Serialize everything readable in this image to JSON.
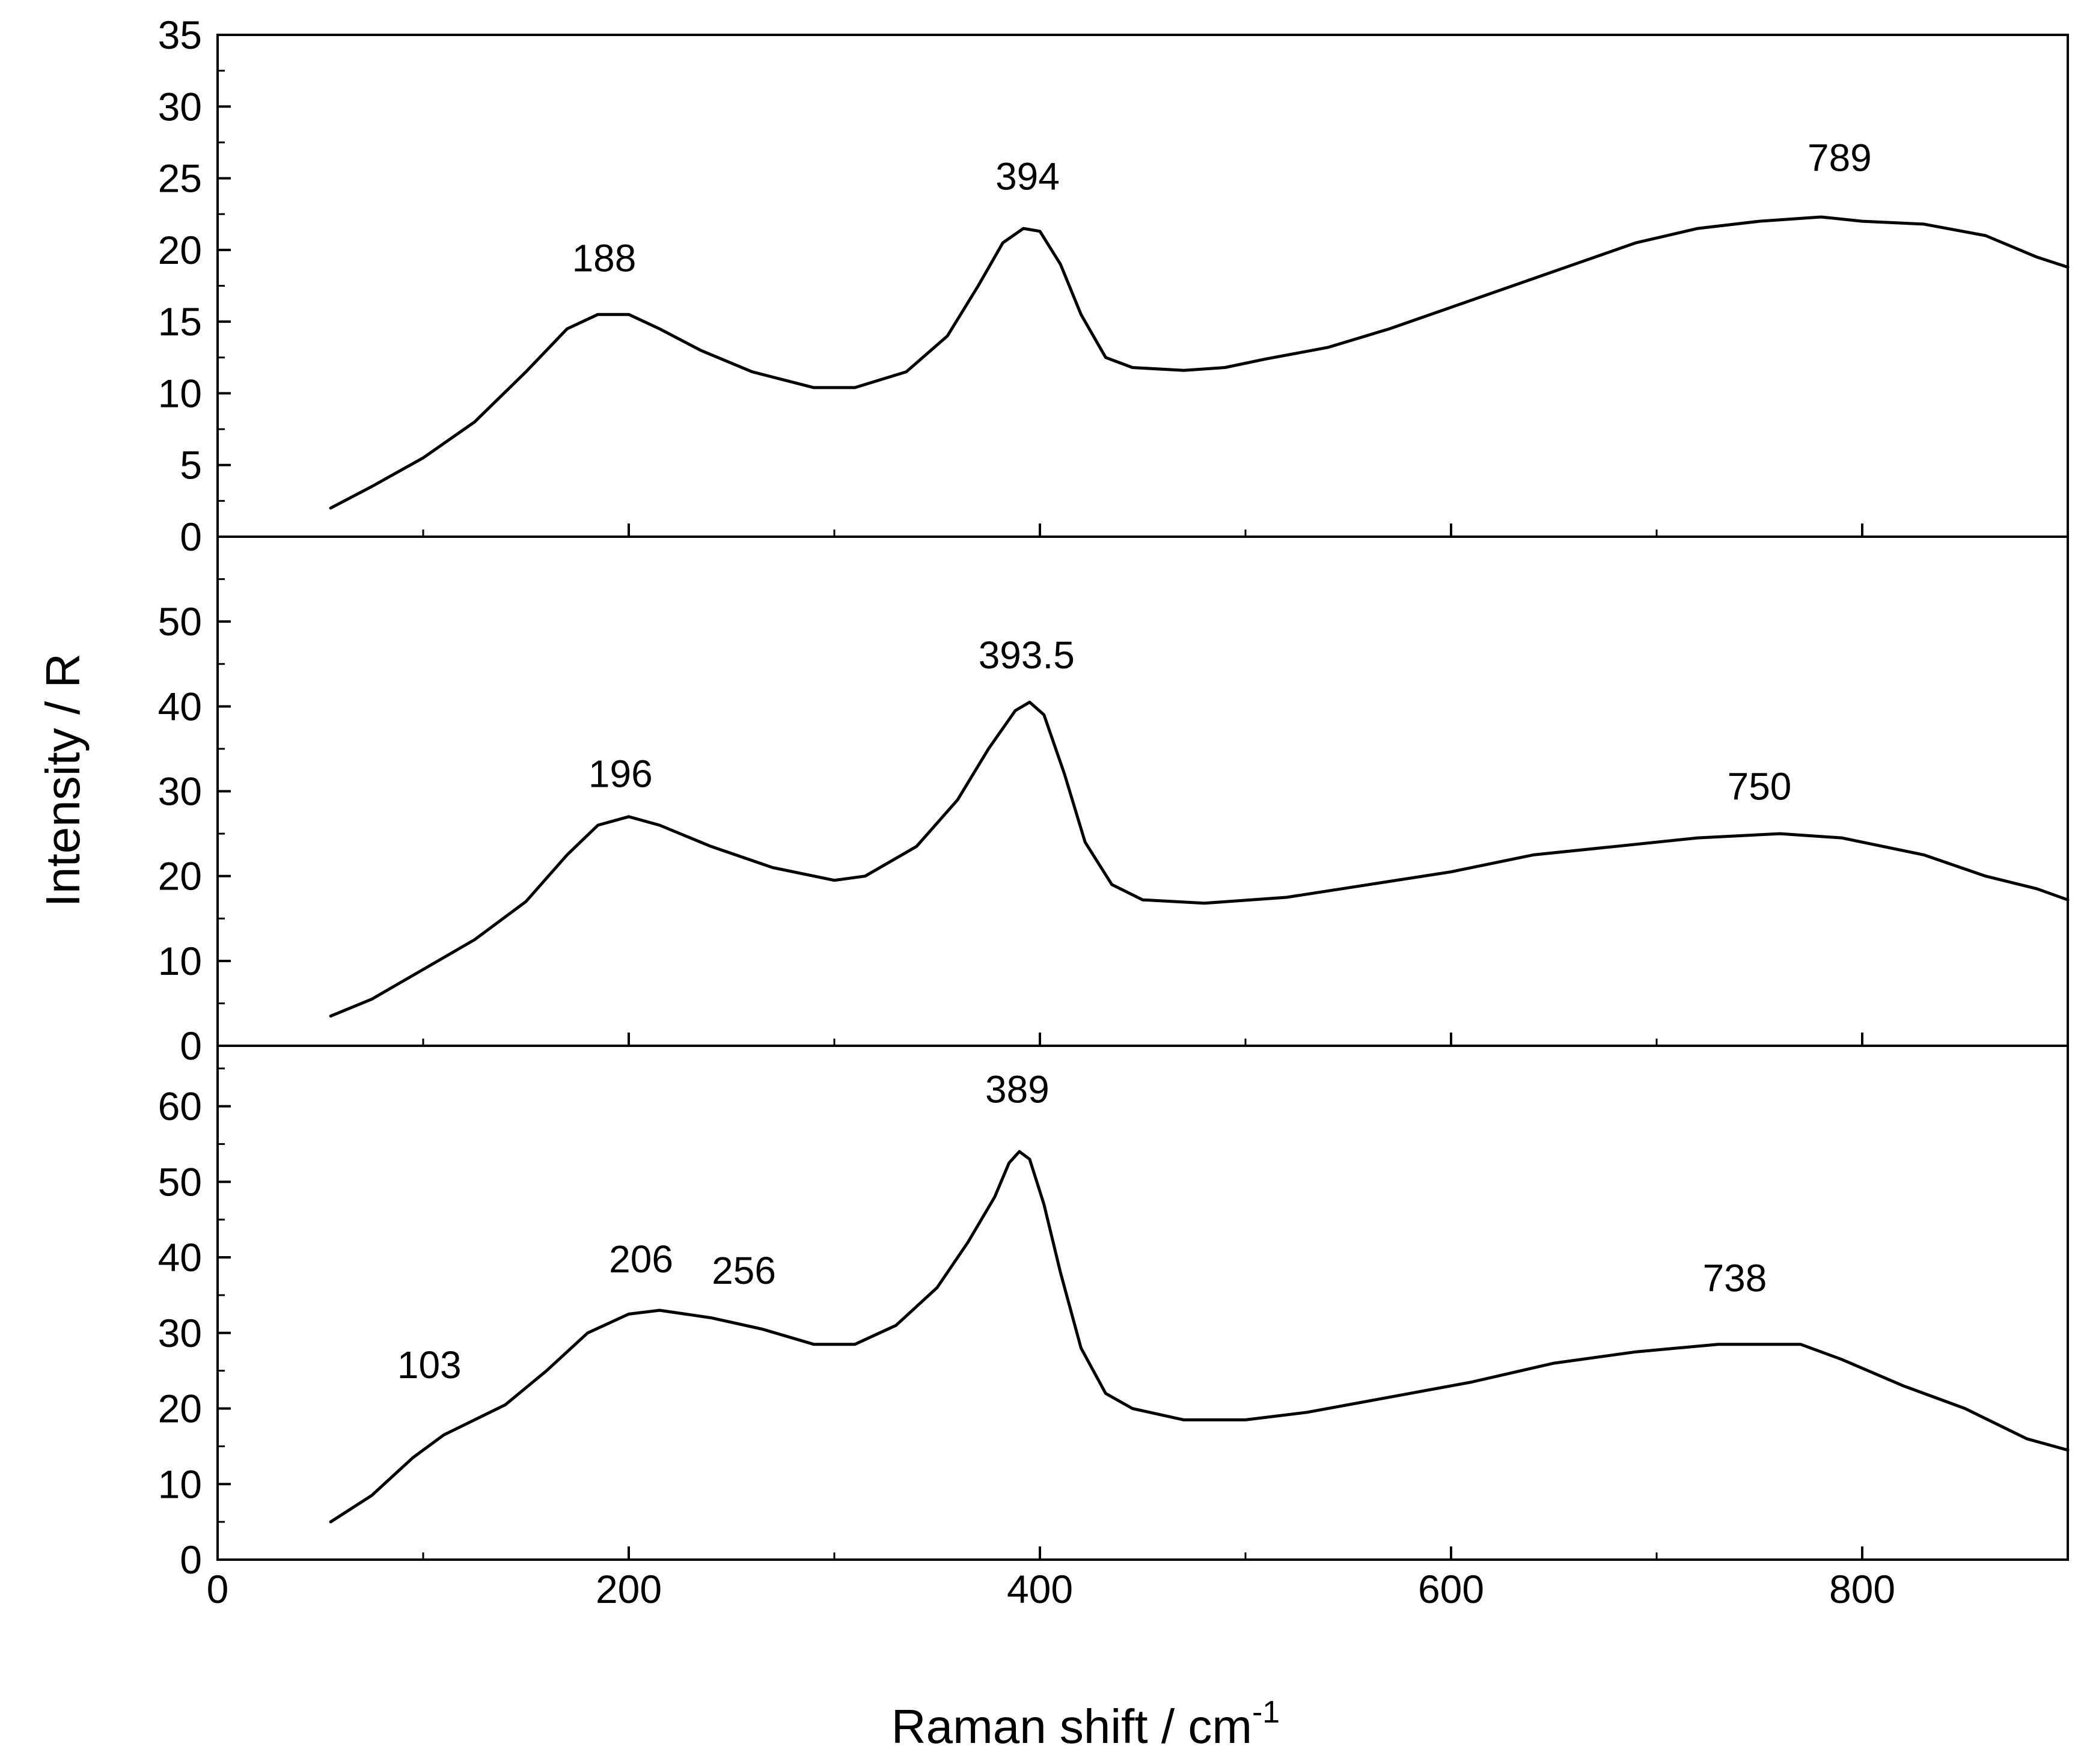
{
  "chart_data": {
    "type": "line",
    "xlabel": "Raman shift / cm",
    "xlabel_superscript": "-1",
    "ylabel": "Intensity / R",
    "xlim": [
      0,
      900
    ],
    "x_ticks": [
      0,
      200,
      400,
      600,
      800
    ],
    "x_tick_labels": [
      "0",
      "200",
      "400",
      "600",
      "800"
    ],
    "line_color": "#000000",
    "panels": [
      {
        "name": "top",
        "ylim": [
          0,
          35
        ],
        "y_ticks": [
          0,
          5,
          10,
          15,
          20,
          25,
          30,
          35
        ],
        "y_tick_labels": [
          "0",
          "5",
          "10",
          "15",
          "20",
          "25",
          "30",
          "35"
        ],
        "peak_labels": [
          {
            "text": "188",
            "x": 188,
            "y": 18.5
          },
          {
            "text": "394",
            "x": 394,
            "y": 24.2
          },
          {
            "text": "789",
            "x": 789,
            "y": 25.5
          }
        ],
        "series": {
          "x": [
            55,
            75,
            100,
            125,
            150,
            170,
            185,
            200,
            215,
            235,
            260,
            290,
            310,
            335,
            355,
            370,
            382,
            392,
            400,
            410,
            420,
            432,
            445,
            470,
            490,
            510,
            540,
            570,
            600,
            630,
            660,
            690,
            720,
            750,
            780,
            800,
            830,
            860,
            885,
            900
          ],
          "y": [
            2.0,
            3.5,
            5.5,
            8.0,
            11.5,
            14.5,
            15.5,
            15.5,
            14.5,
            13.0,
            11.5,
            10.4,
            10.4,
            11.5,
            14.0,
            17.5,
            20.5,
            21.5,
            21.3,
            19.0,
            15.5,
            12.5,
            11.8,
            11.6,
            11.8,
            12.4,
            13.2,
            14.5,
            16.0,
            17.5,
            19.0,
            20.5,
            21.5,
            22.0,
            22.3,
            22.0,
            21.8,
            21.0,
            19.5,
            18.8
          ]
        }
      },
      {
        "name": "middle",
        "ylim": [
          0,
          60
        ],
        "y_ticks": [
          0,
          10,
          20,
          30,
          40,
          50
        ],
        "y_tick_labels": [
          "0",
          "10",
          "20",
          "30",
          "40",
          "50"
        ],
        "peak_labels": [
          {
            "text": "196",
            "x": 196,
            "y": 30.5
          },
          {
            "text": "393.5",
            "x": 393.5,
            "y": 44.5
          },
          {
            "text": "750",
            "x": 750,
            "y": 29.0
          }
        ],
        "series": {
          "x": [
            55,
            75,
            100,
            125,
            150,
            170,
            185,
            200,
            215,
            240,
            270,
            300,
            315,
            340,
            360,
            375,
            388,
            395,
            402,
            412,
            422,
            435,
            450,
            480,
            520,
            560,
            600,
            640,
            680,
            720,
            760,
            790,
            830,
            860,
            885,
            900
          ],
          "y": [
            3.5,
            5.5,
            9.0,
            12.5,
            17.0,
            22.5,
            26.0,
            27.0,
            26.0,
            23.5,
            21.0,
            19.5,
            20.0,
            23.5,
            29.0,
            35.0,
            39.5,
            40.5,
            39.0,
            32.0,
            24.0,
            19.0,
            17.2,
            16.8,
            17.5,
            19.0,
            20.5,
            22.5,
            23.5,
            24.5,
            25.0,
            24.5,
            22.5,
            20.0,
            18.5,
            17.2
          ]
        }
      },
      {
        "name": "bottom",
        "ylim": [
          0,
          68
        ],
        "y_ticks": [
          0,
          10,
          20,
          30,
          40,
          50,
          60
        ],
        "y_tick_labels": [
          "0",
          "10",
          "20",
          "30",
          "40",
          "50",
          "60"
        ],
        "peak_labels": [
          {
            "text": "103",
            "x": 103,
            "y": 24.0
          },
          {
            "text": "206",
            "x": 206,
            "y": 38.0
          },
          {
            "text": "256",
            "x": 256,
            "y": 36.5
          },
          {
            "text": "389",
            "x": 389,
            "y": 60.5
          },
          {
            "text": "738",
            "x": 738,
            "y": 35.5
          }
        ],
        "series": {
          "x": [
            55,
            75,
            95,
            110,
            125,
            140,
            160,
            180,
            200,
            215,
            240,
            265,
            290,
            310,
            330,
            350,
            365,
            378,
            385,
            390,
            395,
            402,
            410,
            420,
            432,
            445,
            470,
            500,
            530,
            570,
            610,
            650,
            690,
            730,
            770,
            790,
            820,
            850,
            880,
            900
          ],
          "y": [
            5.0,
            8.5,
            13.5,
            16.5,
            18.5,
            20.5,
            25.0,
            30.0,
            32.5,
            33.0,
            32.0,
            30.5,
            28.5,
            28.5,
            31.0,
            36.0,
            42.0,
            48.0,
            52.5,
            54.0,
            53.0,
            47.0,
            38.0,
            28.0,
            22.0,
            20.0,
            18.5,
            18.5,
            19.5,
            21.5,
            23.5,
            26.0,
            27.5,
            28.5,
            28.5,
            26.5,
            23.0,
            20.0,
            16.0,
            14.5
          ]
        }
      }
    ]
  }
}
